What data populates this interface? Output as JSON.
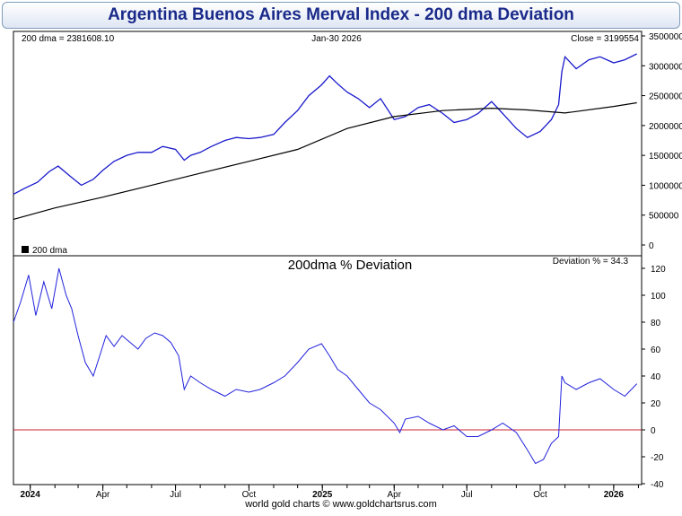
{
  "title": "Argentina Buenos Aires Merval Index - 200 dma Deviation",
  "footer": "world gold charts © www.goldchartsrus.com",
  "colors": {
    "price_line": "#1a1acc",
    "dma_line": "#000000",
    "deviation_line": "#2222dd",
    "zero_line": "#cc2233",
    "frame": "#000000"
  },
  "chart_data": [
    {
      "type": "line",
      "panel": "upper",
      "header_left": "200 dma = 2381608.10",
      "header_center": "Jan-30  2026",
      "header_right": "Close = 3199554",
      "legend_label": "200 dma",
      "legend_position": "bottom-left",
      "grid": false,
      "ylim": [
        0,
        3500000
      ],
      "y_ticks": [
        0,
        500000,
        1000000,
        1500000,
        2000000,
        2500000,
        3000000,
        3500000
      ],
      "y_tick_labels": [
        "0",
        "500000",
        "1000000",
        "1500000",
        "2000000",
        "2500000",
        "3000000",
        "3500000"
      ],
      "x_range": [
        "2023-12-11",
        "2026-02-05"
      ],
      "series": [
        {
          "role": "price",
          "x": [
            "2023-12-11",
            "2023-12-25",
            "2024-01-10",
            "2024-01-25",
            "2024-02-05",
            "2024-02-20",
            "2024-03-05",
            "2024-03-20",
            "2024-04-01",
            "2024-04-15",
            "2024-05-01",
            "2024-05-15",
            "2024-06-01",
            "2024-06-15",
            "2024-07-01",
            "2024-07-12",
            "2024-07-20",
            "2024-08-01",
            "2024-08-15",
            "2024-09-01",
            "2024-09-15",
            "2024-10-01",
            "2024-10-15",
            "2024-11-01",
            "2024-11-15",
            "2024-12-01",
            "2024-12-15",
            "2024-12-31",
            "2025-01-10",
            "2025-01-20",
            "2025-02-01",
            "2025-02-15",
            "2025-03-01",
            "2025-03-15",
            "2025-04-01",
            "2025-04-15",
            "2025-05-01",
            "2025-05-15",
            "2025-06-01",
            "2025-06-15",
            "2025-07-01",
            "2025-07-15",
            "2025-08-01",
            "2025-08-15",
            "2025-09-01",
            "2025-09-15",
            "2025-10-01",
            "2025-10-15",
            "2025-10-24",
            "2025-10-28",
            "2025-11-01",
            "2025-11-15",
            "2025-12-01",
            "2025-12-15",
            "2026-01-01",
            "2026-01-15",
            "2026-01-30"
          ],
          "values": [
            850000,
            950000,
            1050000,
            1230000,
            1320000,
            1150000,
            1000000,
            1100000,
            1250000,
            1400000,
            1500000,
            1550000,
            1550000,
            1650000,
            1600000,
            1420000,
            1500000,
            1550000,
            1650000,
            1750000,
            1800000,
            1780000,
            1800000,
            1850000,
            2050000,
            2250000,
            2500000,
            2680000,
            2830000,
            2700000,
            2560000,
            2450000,
            2300000,
            2450000,
            2100000,
            2150000,
            2300000,
            2350000,
            2200000,
            2050000,
            2100000,
            2200000,
            2400000,
            2200000,
            1950000,
            1800000,
            1900000,
            2100000,
            2350000,
            2900000,
            3150000,
            2950000,
            3100000,
            3150000,
            3050000,
            3100000,
            3199554
          ]
        },
        {
          "role": "200 dma",
          "x": [
            "2023-12-11",
            "2024-02-01",
            "2024-04-01",
            "2024-06-01",
            "2024-08-01",
            "2024-10-01",
            "2024-12-01",
            "2025-02-01",
            "2025-04-01",
            "2025-06-01",
            "2025-08-01",
            "2025-09-15",
            "2025-11-01",
            "2026-01-01",
            "2026-01-30"
          ],
          "values": [
            430000,
            620000,
            800000,
            1000000,
            1200000,
            1400000,
            1600000,
            1950000,
            2150000,
            2250000,
            2290000,
            2260000,
            2210000,
            2320000,
            2381608
          ]
        }
      ]
    },
    {
      "type": "line",
      "panel": "lower",
      "title": "200dma  %  Deviation",
      "header_right": "Deviation % = 34.3",
      "grid": false,
      "ylim": [
        -40,
        120
      ],
      "y_ticks": [
        -40,
        -20,
        0,
        20,
        40,
        60,
        80,
        100,
        120
      ],
      "reference_line": 0,
      "x_range": [
        "2023-12-11",
        "2026-02-05"
      ],
      "x_ticks": [
        "2024-01-01",
        "2024-04-01",
        "2024-07-01",
        "2024-10-01",
        "2025-01-01",
        "2025-04-01",
        "2025-07-01",
        "2025-10-01",
        "2026-01-01"
      ],
      "x_tick_labels": [
        "2024",
        "Apr",
        "Jul",
        "Oct",
        "2025",
        "Apr",
        "Jul",
        "Oct",
        "2026"
      ],
      "series": [
        {
          "role": "deviation",
          "x": [
            "2023-12-11",
            "2023-12-20",
            "2023-12-30",
            "2024-01-08",
            "2024-01-18",
            "2024-01-28",
            "2024-02-06",
            "2024-02-15",
            "2024-02-22",
            "2024-03-01",
            "2024-03-10",
            "2024-03-20",
            "2024-03-28",
            "2024-04-05",
            "2024-04-15",
            "2024-04-25",
            "2024-05-05",
            "2024-05-15",
            "2024-05-25",
            "2024-06-05",
            "2024-06-15",
            "2024-06-25",
            "2024-07-05",
            "2024-07-12",
            "2024-07-20",
            "2024-08-01",
            "2024-08-15",
            "2024-09-01",
            "2024-09-15",
            "2024-10-01",
            "2024-10-15",
            "2024-11-01",
            "2024-11-15",
            "2024-12-01",
            "2024-12-15",
            "2024-12-31",
            "2025-01-10",
            "2025-01-20",
            "2025-02-01",
            "2025-02-15",
            "2025-03-01",
            "2025-03-15",
            "2025-04-01",
            "2025-04-08",
            "2025-04-15",
            "2025-05-01",
            "2025-05-15",
            "2025-06-01",
            "2025-06-15",
            "2025-07-01",
            "2025-07-15",
            "2025-08-01",
            "2025-08-15",
            "2025-09-01",
            "2025-09-15",
            "2025-09-25",
            "2025-10-05",
            "2025-10-15",
            "2025-10-24",
            "2025-10-28",
            "2025-11-01",
            "2025-11-15",
            "2025-12-01",
            "2025-12-15",
            "2026-01-01",
            "2026-01-15",
            "2026-01-30"
          ],
          "values": [
            80,
            95,
            115,
            85,
            110,
            90,
            120,
            100,
            90,
            70,
            50,
            40,
            55,
            70,
            62,
            70,
            65,
            60,
            68,
            72,
            70,
            65,
            55,
            30,
            40,
            35,
            30,
            25,
            30,
            28,
            30,
            35,
            40,
            50,
            60,
            64,
            55,
            45,
            40,
            30,
            20,
            15,
            5,
            -2,
            8,
            10,
            5,
            0,
            3,
            -5,
            -5,
            0,
            5,
            -2,
            -15,
            -25,
            -22,
            -10,
            -5,
            40,
            35,
            30,
            35,
            38,
            30,
            25,
            34.3
          ]
        }
      ]
    }
  ]
}
